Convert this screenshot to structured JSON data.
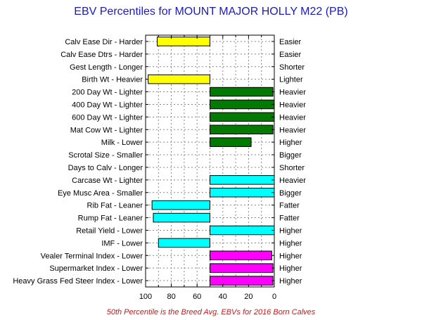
{
  "chart_data": {
    "type": "bar",
    "title": "EBV Percentiles for MOUNT MAJOR HOLLY M22 (PB)",
    "footnote": "50th Percentile is the Breed Avg. EBVs for 2016 Born Calves",
    "xlim": [
      100,
      0
    ],
    "x_reversed": true,
    "x_ticks": [
      "100",
      "80",
      "60",
      "40",
      "20",
      "0"
    ],
    "baseline": 50,
    "grid": true,
    "traits": [
      {
        "left": "Calv Ease Dir - Harder",
        "right": "Easier",
        "value": 91,
        "color": "#ffff00"
      },
      {
        "left": "Calv Ease Dtrs - Harder",
        "right": "Easier",
        "value": null,
        "color": ""
      },
      {
        "left": "Gest Length - Longer",
        "right": "Shorter",
        "value": null,
        "color": ""
      },
      {
        "left": "Birth Wt - Heavier",
        "right": "Lighter",
        "value": 98,
        "color": "#ffff00"
      },
      {
        "left": "200 Day Wt - Lighter",
        "right": "Heavier",
        "value": 1,
        "color": "#007a00"
      },
      {
        "left": "400 Day Wt - Lighter",
        "right": "Heavier",
        "value": 0,
        "color": "#007a00"
      },
      {
        "left": "600 Day Wt - Lighter",
        "right": "Heavier",
        "value": 0,
        "color": "#007a00"
      },
      {
        "left": "Mat Cow Wt - Lighter",
        "right": "Heavier",
        "value": 1,
        "color": "#007a00"
      },
      {
        "left": "Milk - Lower",
        "right": "Higher",
        "value": 18,
        "color": "#007a00"
      },
      {
        "left": "Scrotal Size - Smaller",
        "right": "Bigger",
        "value": null,
        "color": ""
      },
      {
        "left": "Days to Calv - Longer",
        "right": "Shorter",
        "value": null,
        "color": ""
      },
      {
        "left": "Carcase Wt - Lighter",
        "right": "Heavier",
        "value": 0,
        "color": "#00ffff"
      },
      {
        "left": "Eye Musc Area - Smaller",
        "right": "Bigger",
        "value": 0,
        "color": "#00ffff"
      },
      {
        "left": "Rib Fat - Leaner",
        "right": "Fatter",
        "value": 95,
        "color": "#00ffff"
      },
      {
        "left": "Rump Fat - Leaner",
        "right": "Fatter",
        "value": 94,
        "color": "#00ffff"
      },
      {
        "left": "Retail Yield - Lower",
        "right": "Higher",
        "value": 0,
        "color": "#00ffff"
      },
      {
        "left": "IMF - Lower",
        "right": "Higher",
        "value": 90,
        "color": "#00ffff"
      },
      {
        "left": "Vealer Terminal Index - Lower",
        "right": "Higher",
        "value": 2,
        "color": "#ff00ff"
      },
      {
        "left": "Supermarket Index - Lower",
        "right": "Higher",
        "value": 1,
        "color": "#ff00ff"
      },
      {
        "left": "Heavy Grass Fed Steer Index - Lower",
        "right": "Higher",
        "value": 1,
        "color": "#ff00ff"
      }
    ]
  }
}
